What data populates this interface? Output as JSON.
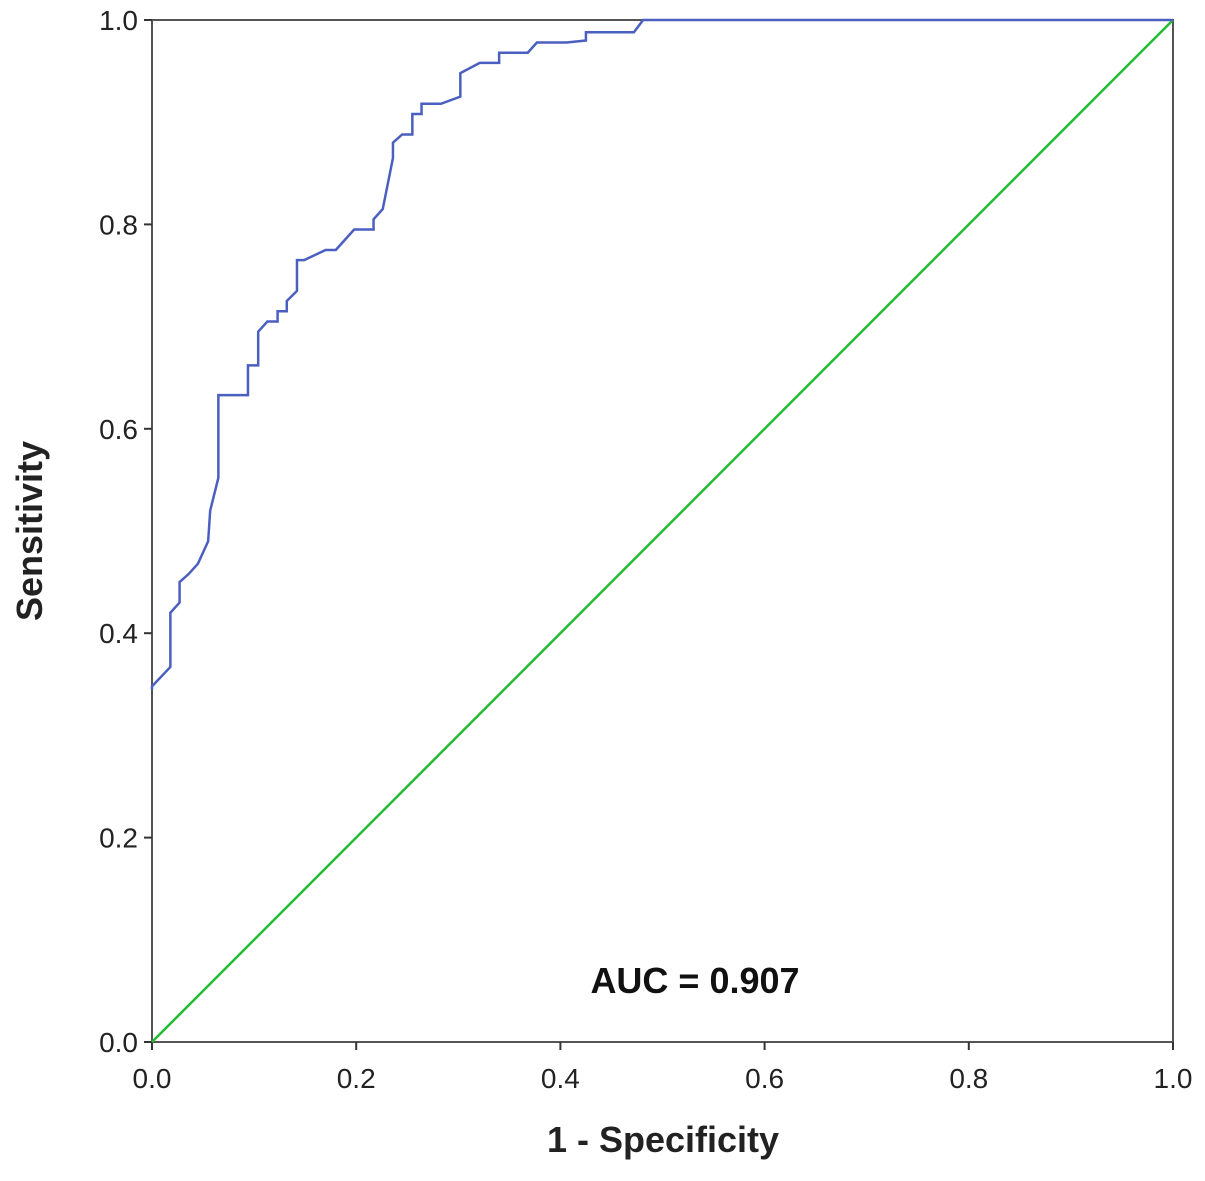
{
  "chart_data": {
    "type": "line",
    "title": "",
    "xlabel": "1 - Specificity",
    "ylabel": "Sensitivity",
    "xlim": [
      0,
      1
    ],
    "ylim": [
      0,
      1
    ],
    "xticks": [
      "0.0",
      "0.2",
      "0.4",
      "0.6",
      "0.8",
      "1.0"
    ],
    "yticks": [
      "0.0",
      "0.2",
      "0.4",
      "0.6",
      "0.8",
      "1.0"
    ],
    "grid": false,
    "annotation": "AUC = 0.907",
    "colors": {
      "roc": "#4a5fbf",
      "reference": "#22bb33",
      "axis": "#333333",
      "frame": "#555555"
    },
    "series": [
      {
        "x": [
          0.0,
          0.0,
          0.018,
          0.018,
          0.027,
          0.027,
          0.036,
          0.045,
          0.055,
          0.057,
          0.065,
          0.065,
          0.094,
          0.094,
          0.104,
          0.104,
          0.113,
          0.123,
          0.123,
          0.132,
          0.132,
          0.142,
          0.142,
          0.149,
          0.17,
          0.18,
          0.198,
          0.217,
          0.217,
          0.226,
          0.236,
          0.236,
          0.245,
          0.255,
          0.255,
          0.264,
          0.264,
          0.283,
          0.302,
          0.302,
          0.321,
          0.34,
          0.34,
          0.368,
          0.377,
          0.406,
          0.425,
          0.425,
          0.472,
          0.481,
          1.0
        ],
        "y": [
          0.345,
          0.348,
          0.367,
          0.42,
          0.43,
          0.45,
          0.458,
          0.468,
          0.49,
          0.52,
          0.552,
          0.633,
          0.633,
          0.662,
          0.662,
          0.695,
          0.705,
          0.705,
          0.715,
          0.715,
          0.725,
          0.735,
          0.765,
          0.765,
          0.775,
          0.775,
          0.795,
          0.795,
          0.805,
          0.815,
          0.865,
          0.88,
          0.888,
          0.888,
          0.908,
          0.908,
          0.918,
          0.918,
          0.925,
          0.948,
          0.958,
          0.958,
          0.968,
          0.968,
          0.978,
          0.978,
          0.98,
          0.988,
          0.988,
          1.0,
          1.0
        ]
      },
      {
        "x": [
          0,
          1
        ],
        "y": [
          0,
          1
        ]
      }
    ]
  }
}
